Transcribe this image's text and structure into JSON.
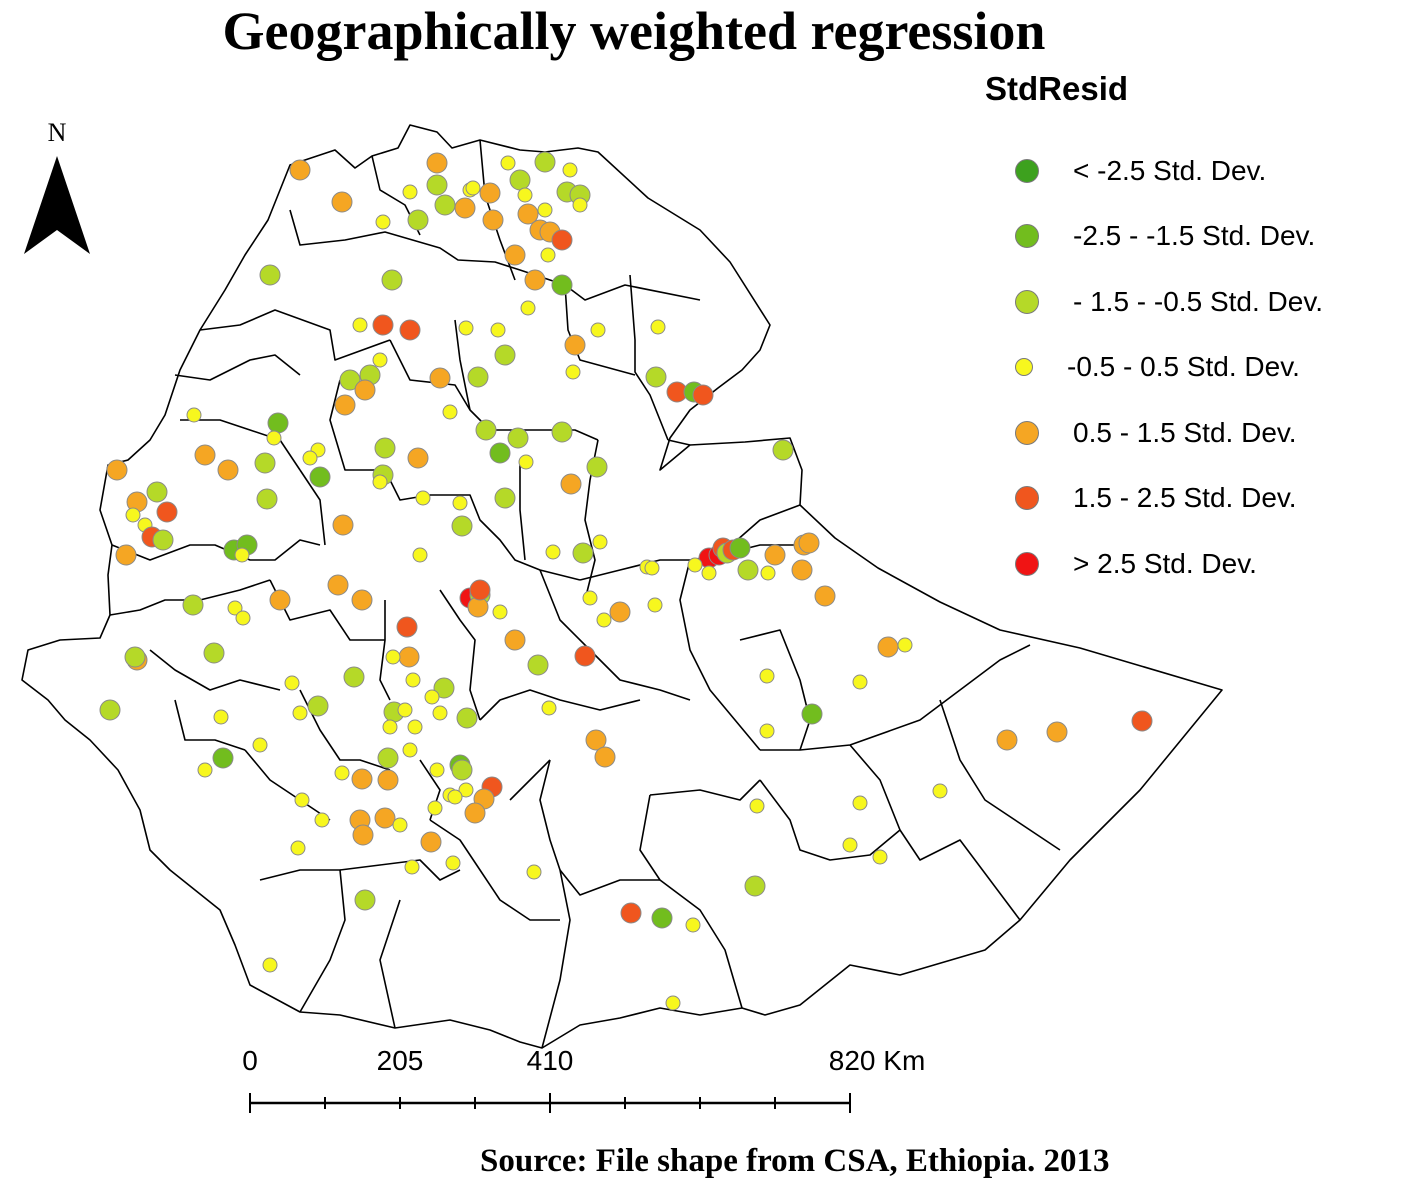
{
  "title": "Geographically weighted regression",
  "legend": {
    "title": "StdResid",
    "classes": [
      {
        "label": "< -2.5 Std. Dev.",
        "color": "#3da11e"
      },
      {
        "label": "-2.5 - -1.5 Std. Dev.",
        "color": "#72bd1e"
      },
      {
        "label": "- 1.5 - -0.5 Std. Dev.",
        "color": "#b5d928"
      },
      {
        "label": "-0.5 - 0.5 Std. Dev.",
        "color": "#f7f71e"
      },
      {
        "label": "0.5 - 1.5 Std. Dev.",
        "color": "#f5a623"
      },
      {
        "label": "1.5 - 2.5 Std. Dev.",
        "color": "#f0561e"
      },
      {
        "label": "> 2.5 Std. Dev.",
        "color": "#f01414"
      }
    ]
  },
  "north_arrow": {
    "label": "N"
  },
  "scale_bar": {
    "labels": [
      "0",
      "205",
      "410",
      "820 Km"
    ],
    "values": [
      0,
      205,
      410,
      820
    ],
    "max": 820,
    "subdivisions": 8
  },
  "source": "Source: File shape from CSA, Ethiopia. 2013"
}
